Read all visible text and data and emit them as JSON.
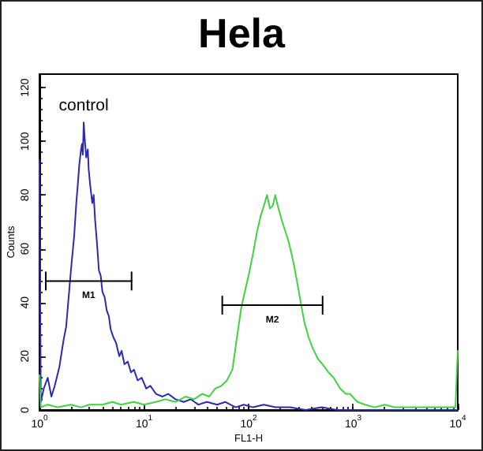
{
  "chart_data": {
    "type": "line",
    "title": "Hela",
    "xlabel": "FL1-H",
    "ylabel": "Counts",
    "log": "x",
    "grid": false,
    "xlim": [
      1,
      10000
    ],
    "xticks": [
      {
        "value": 1,
        "label": "10$^{0}$"
      },
      {
        "value": 2,
        "label": null
      },
      {
        "value": 3,
        "label": null
      },
      {
        "value": 4,
        "label": null
      },
      {
        "value": 5,
        "label": null
      },
      {
        "value": 6,
        "label": null
      },
      {
        "value": 7,
        "label": null
      },
      {
        "value": 8,
        "label": null
      },
      {
        "value": 9,
        "label": null
      },
      {
        "value": 10,
        "label": "10$^{1}$"
      },
      {
        "value": 20,
        "label": null
      },
      {
        "value": 30,
        "label": null
      },
      {
        "value": 40,
        "label": null
      },
      {
        "value": 50,
        "label": null
      },
      {
        "value": 60,
        "label": null
      },
      {
        "value": 70,
        "label": null
      },
      {
        "value": 80,
        "label": null
      },
      {
        "value": 90,
        "label": null
      },
      {
        "value": 100,
        "label": "10$^{2}$"
      },
      {
        "value": 200,
        "label": null
      },
      {
        "value": 300,
        "label": null
      },
      {
        "value": 400,
        "label": null
      },
      {
        "value": 500,
        "label": null
      },
      {
        "value": 600,
        "label": null
      },
      {
        "value": 700,
        "label": null
      },
      {
        "value": 800,
        "label": null
      },
      {
        "value": 900,
        "label": null
      },
      {
        "value": 1000,
        "label": "10$^{3}$"
      },
      {
        "value": 2000,
        "label": null
      },
      {
        "value": 3000,
        "label": null
      },
      {
        "value": 4000,
        "label": null
      },
      {
        "value": 5000,
        "label": null
      },
      {
        "value": 6000,
        "label": null
      },
      {
        "value": 7000,
        "label": null
      },
      {
        "value": 8000,
        "label": null
      },
      {
        "value": 9000,
        "label": null
      },
      {
        "value": 10000,
        "label": "10$^{4}$"
      }
    ],
    "ylim": [
      0,
      125
    ],
    "yticks": [
      0,
      {
        "value": 4,
        "label": null
      },
      {
        "value": 8,
        "label": null
      },
      {
        "value": 12,
        "label": null
      },
      {
        "value": 16,
        "label": null
      },
      20,
      {
        "value": 24,
        "label": null
      },
      {
        "value": 28,
        "label": null
      },
      {
        "value": 32,
        "label": null
      },
      {
        "value": 36,
        "label": null
      },
      40,
      {
        "value": 44,
        "label": null
      },
      {
        "value": 48,
        "label": null
      },
      {
        "value": 52,
        "label": null
      },
      {
        "value": 56,
        "label": null
      },
      60,
      {
        "value": 64,
        "label": null
      },
      {
        "value": 68,
        "label": null
      },
      {
        "value": 72,
        "label": null
      },
      {
        "value": 76,
        "label": null
      },
      80,
      {
        "value": 84,
        "label": null
      },
      {
        "value": 88,
        "label": null
      },
      {
        "value": 92,
        "label": null
      },
      {
        "value": 96,
        "label": null
      },
      100,
      {
        "value": 104,
        "label": null
      },
      {
        "value": 108,
        "label": null
      },
      {
        "value": 112,
        "label": null
      },
      {
        "value": 116,
        "label": null
      },
      120
    ],
    "series": [
      {
        "name": "control",
        "color": "#2a2ab4",
        "x": [
          1,
          1.03,
          1.1,
          1.2,
          1.3,
          1.4,
          1.55,
          1.7,
          1.8,
          2,
          2.15,
          2.25,
          2.35,
          2.4,
          2.5,
          2.55,
          2.6,
          2.65,
          2.72,
          2.8,
          2.9,
          2.95,
          3.05,
          3.2,
          3.3,
          3.4,
          3.55,
          3.7,
          3.85,
          4,
          4.2,
          4.4,
          4.6,
          4.8,
          5.1,
          5.4,
          5.8,
          6.1,
          6.5,
          7,
          7.5,
          8,
          8.7,
          9.5,
          10.5,
          11.5,
          13,
          15,
          17,
          20,
          24,
          28,
          33,
          40,
          50,
          60,
          75,
          90,
          110,
          140,
          180,
          250,
          350,
          500,
          700,
          1000,
          2000,
          5000,
          10000
        ],
        "values": [
          93,
          3,
          8,
          12,
          5,
          9,
          16,
          26,
          31,
          52,
          65,
          77,
          86,
          91,
          97,
          99,
          95,
          107,
          100,
          94,
          97,
          90,
          84,
          77,
          80,
          71,
          62,
          52,
          50,
          44,
          42,
          37,
          35,
          30,
          27,
          25,
          20,
          22,
          17,
          18,
          14,
          15,
          11,
          12,
          8,
          9,
          6,
          5,
          6,
          4,
          3,
          4,
          2,
          3,
          2,
          3,
          1,
          2,
          1,
          2,
          1,
          1,
          0,
          1,
          0,
          0,
          0,
          0,
          0
        ]
      },
      {
        "color": "#3ed43e",
        "x": [
          1,
          1.03,
          1.2,
          1.5,
          2,
          2.5,
          3,
          4,
          5,
          6,
          8,
          10,
          13,
          16,
          20,
          25,
          30,
          36,
          42,
          48,
          55,
          62,
          70,
          78,
          85,
          92,
          100,
          110,
          120,
          130,
          140,
          150,
          160,
          170,
          180,
          190,
          210,
          240,
          265,
          290,
          315,
          340,
          375,
          410,
          460,
          510,
          580,
          650,
          750,
          850,
          930,
          1100,
          1300,
          1600,
          2000,
          2500,
          3000,
          4000,
          5000,
          7000,
          9500,
          10000
        ],
        "values": [
          13,
          1,
          2,
          1,
          2,
          1,
          2,
          2,
          3,
          2,
          3,
          2,
          3,
          4,
          3,
          5,
          4,
          6,
          5,
          8,
          9,
          11,
          15,
          28,
          38,
          44,
          50,
          58,
          66,
          72,
          76,
          80,
          75,
          76,
          80,
          76,
          70,
          63,
          56,
          48,
          40,
          33,
          27,
          23,
          19,
          17,
          14,
          12,
          8,
          6,
          6,
          3,
          2,
          1,
          2,
          1,
          1,
          1,
          1,
          1,
          1,
          22
        ]
      },
      {
        "color": "#000000",
        "x": [
          1.15,
          7.6
        ],
        "values": [
          48,
          48
        ],
        "errors": [
          3.5,
          3.5
        ]
      },
      {
        "color": "#000000",
        "x": [
          56,
          510
        ],
        "values": [
          39,
          39
        ],
        "errors": [
          3.5,
          3.5
        ]
      }
    ],
    "annotations": [
      {
        "text": "M1",
        "x": 2.96,
        "y": 48
      },
      {
        "text": "M2",
        "x": 169,
        "y": 39
      }
    ]
  }
}
